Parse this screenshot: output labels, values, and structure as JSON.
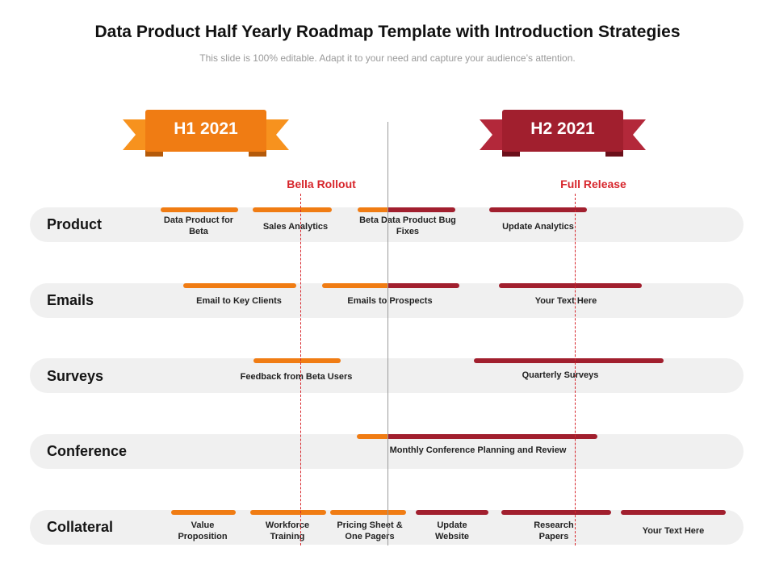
{
  "header": {
    "title": "Data Product Half Yearly Roadmap Template with Introduction Strategies",
    "subtitle": "This slide is 100% editable. Adapt it to your need and capture your audience’s attention."
  },
  "periods": {
    "h1": {
      "label": "H1 2021",
      "color": "#f07c13"
    },
    "h2": {
      "label": "H2 2021",
      "color": "#a11f2e"
    }
  },
  "milestones": {
    "bella": "Bella Rollout",
    "full": "Full Release"
  },
  "rows": [
    {
      "label": "Product",
      "tasks": [
        "Data Product for Beta",
        "Sales Analytics",
        "Beta Data Product Bug Fixes",
        "Update Analytics"
      ]
    },
    {
      "label": "Emails",
      "tasks": [
        "Email to Key Clients",
        "Emails to Prospects",
        "Your Text Here"
      ]
    },
    {
      "label": "Surveys",
      "tasks": [
        "Feedback from Beta Users",
        "Quarterly Surveys"
      ]
    },
    {
      "label": "Conference",
      "tasks": [
        "Monthly Conference Planning and Review"
      ]
    },
    {
      "label": "Collateral",
      "tasks": [
        "Value Proposition",
        "Workforce Training",
        "Pricing Sheet & One Pagers",
        "Update Website",
        "Research Papers",
        "Your Text Here"
      ]
    }
  ],
  "colors": {
    "h1_orange": "#f07c13",
    "h2_red": "#a11f2e",
    "milestone_red": "#d7262c",
    "row_bg": "#f0f0f0"
  }
}
